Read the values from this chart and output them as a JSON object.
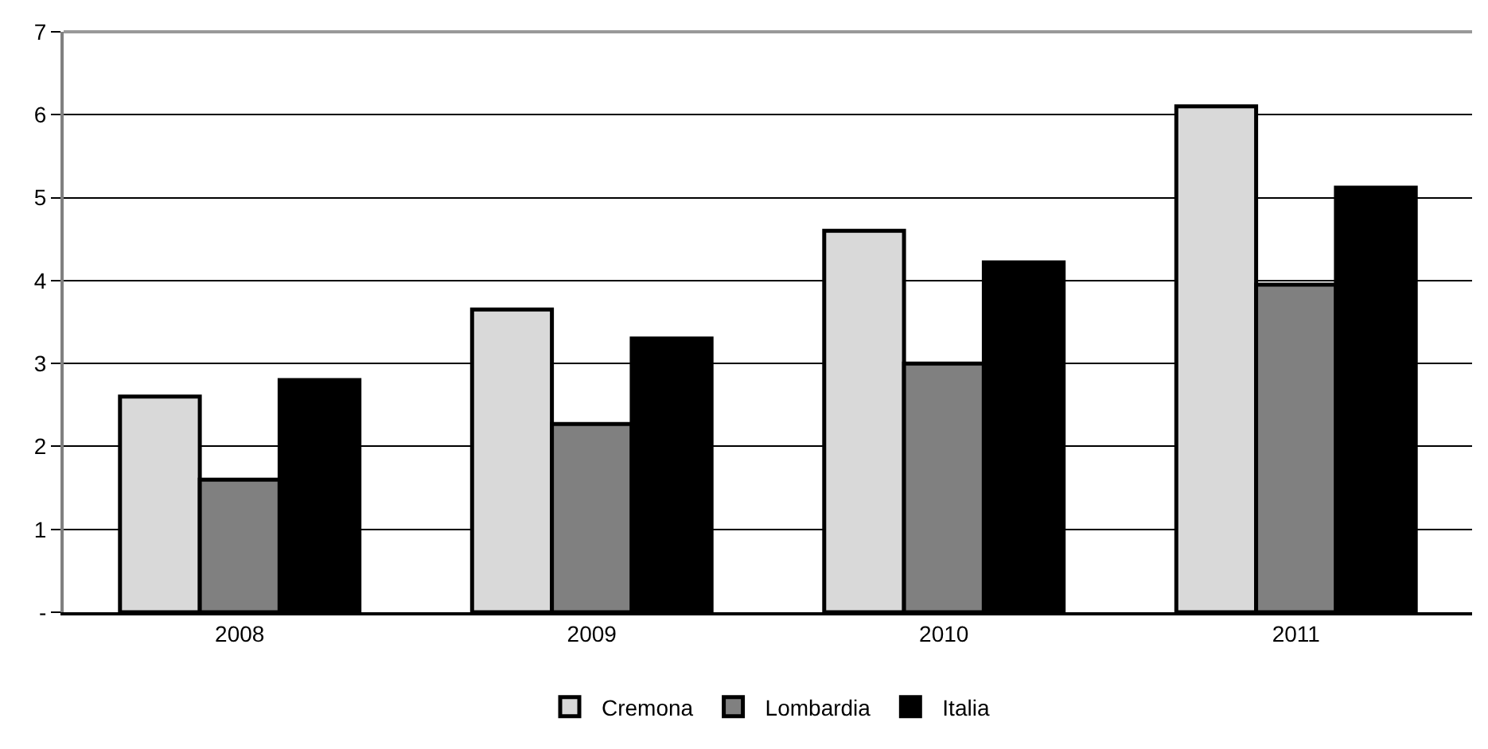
{
  "chart_data": {
    "type": "bar",
    "categories": [
      "2008",
      "2009",
      "2010",
      "2011"
    ],
    "series": [
      {
        "name": "Cremona",
        "color": "#d9d9d9",
        "values": [
          2.6,
          3.65,
          4.6,
          6.1
        ]
      },
      {
        "name": "Lombardia",
        "color": "#808080",
        "values": [
          1.6,
          2.27,
          3.0,
          3.95
        ]
      },
      {
        "name": "Italia",
        "color": "#000000",
        "values": [
          2.8,
          3.3,
          4.22,
          5.12
        ]
      }
    ],
    "ylim": [
      0,
      7
    ],
    "yticks": [
      {
        "value": 0,
        "label": "-"
      },
      1,
      2,
      3,
      4,
      5,
      6,
      7
    ],
    "grid": "y",
    "legend": "bottom"
  }
}
